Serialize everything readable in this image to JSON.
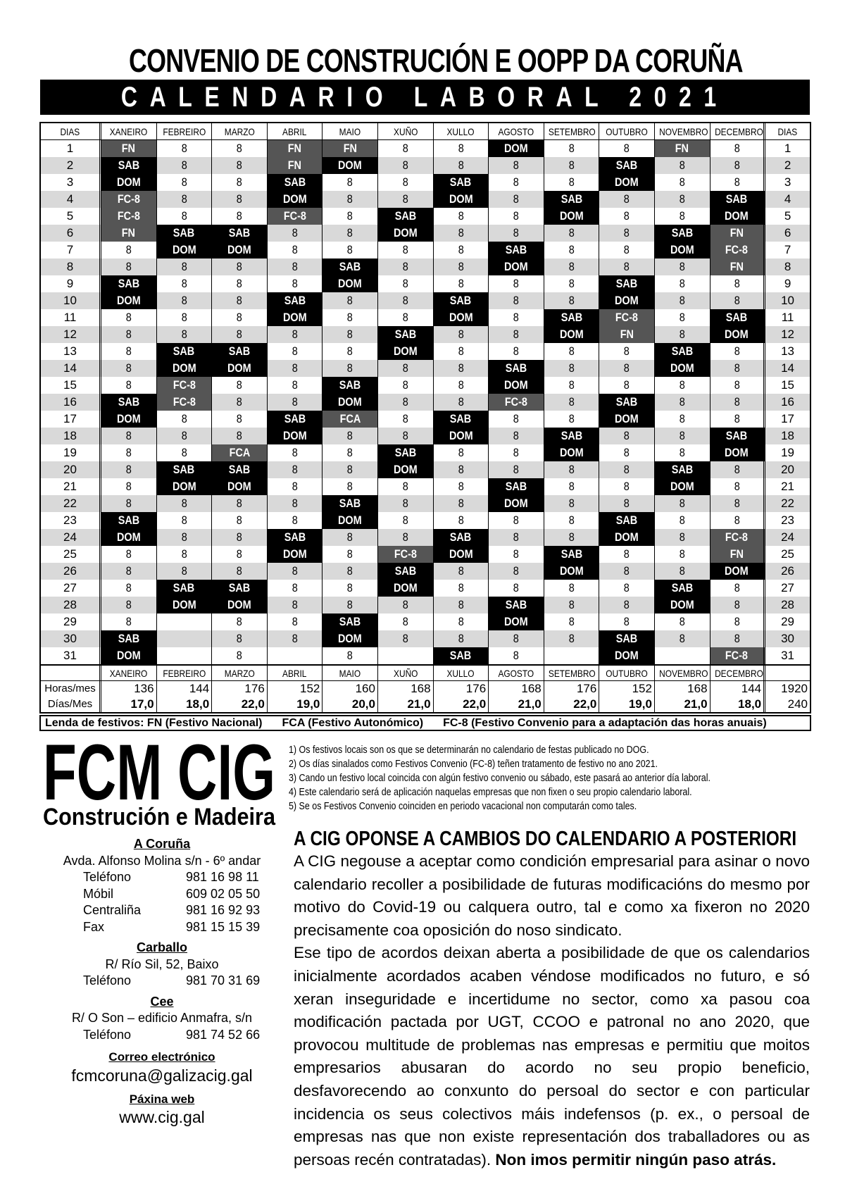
{
  "title": "CONVENIO DE CONSTRUCIÓN E OOPP DA CORUÑA",
  "subtitle": "CALENDARIO LABORAL 2021",
  "colors": {
    "weekend": "#000000",
    "holiday": "#555555",
    "stripe": "#d9d9d9"
  },
  "table": {
    "days_label": "DIAS",
    "months": [
      "XANEIRO",
      "FEBREIRO",
      "MARZO",
      "ABRIL",
      "MAIO",
      "XUÑO",
      "XULLO",
      "AGOSTO",
      "SETEMBRO",
      "OUTUBRO",
      "NOVEMBRO",
      "DECEMBRO"
    ],
    "grid": [
      [
        "FN",
        "SAB",
        "DOM",
        "FC-8",
        "FC-8",
        "FN",
        "8",
        "8",
        "SAB",
        "DOM",
        "8",
        "8",
        "8",
        "8",
        "8",
        "SAB",
        "DOM",
        "8",
        "8",
        "8",
        "8",
        "8",
        "SAB",
        "DOM",
        "8",
        "8",
        "8",
        "8",
        "8",
        "SAB",
        "DOM"
      ],
      [
        "8",
        "8",
        "8",
        "8",
        "8",
        "SAB",
        "DOM",
        "8",
        "8",
        "8",
        "8",
        "8",
        "SAB",
        "DOM",
        "FC-8",
        "FC-8",
        "8",
        "8",
        "8",
        "SAB",
        "DOM",
        "8",
        "8",
        "8",
        "8",
        "8",
        "SAB",
        "DOM",
        "",
        "",
        ""
      ],
      [
        "8",
        "8",
        "8",
        "8",
        "8",
        "SAB",
        "DOM",
        "8",
        "8",
        "8",
        "8",
        "8",
        "SAB",
        "DOM",
        "8",
        "8",
        "8",
        "8",
        "FCA",
        "SAB",
        "DOM",
        "8",
        "8",
        "8",
        "8",
        "8",
        "SAB",
        "DOM",
        "8",
        "8",
        "8"
      ],
      [
        "FN",
        "FN",
        "SAB",
        "DOM",
        "FC-8",
        "8",
        "8",
        "8",
        "8",
        "SAB",
        "DOM",
        "8",
        "8",
        "8",
        "8",
        "8",
        "SAB",
        "DOM",
        "8",
        "8",
        "8",
        "8",
        "8",
        "SAB",
        "DOM",
        "8",
        "8",
        "8",
        "8",
        "8",
        ""
      ],
      [
        "FN",
        "DOM",
        "8",
        "8",
        "8",
        "8",
        "8",
        "SAB",
        "DOM",
        "8",
        "8",
        "8",
        "8",
        "8",
        "SAB",
        "DOM",
        "FCA",
        "8",
        "8",
        "8",
        "8",
        "SAB",
        "DOM",
        "8",
        "8",
        "8",
        "8",
        "8",
        "SAB",
        "DOM",
        "8"
      ],
      [
        "8",
        "8",
        "8",
        "8",
        "SAB",
        "DOM",
        "8",
        "8",
        "8",
        "8",
        "8",
        "SAB",
        "DOM",
        "8",
        "8",
        "8",
        "8",
        "8",
        "SAB",
        "DOM",
        "8",
        "8",
        "8",
        "8",
        "FC-8",
        "SAB",
        "DOM",
        "8",
        "8",
        "8",
        ""
      ],
      [
        "8",
        "8",
        "SAB",
        "DOM",
        "8",
        "8",
        "8",
        "8",
        "8",
        "SAB",
        "DOM",
        "8",
        "8",
        "8",
        "8",
        "8",
        "SAB",
        "DOM",
        "8",
        "8",
        "8",
        "8",
        "8",
        "SAB",
        "DOM",
        "8",
        "8",
        "8",
        "8",
        "8",
        "SAB"
      ],
      [
        "DOM",
        "8",
        "8",
        "8",
        "8",
        "8",
        "SAB",
        "DOM",
        "8",
        "8",
        "8",
        "8",
        "8",
        "SAB",
        "DOM",
        "FC-8",
        "8",
        "8",
        "8",
        "8",
        "SAB",
        "DOM",
        "8",
        "8",
        "8",
        "8",
        "8",
        "SAB",
        "DOM",
        "8",
        "8"
      ],
      [
        "8",
        "8",
        "8",
        "SAB",
        "DOM",
        "8",
        "8",
        "8",
        "8",
        "8",
        "SAB",
        "DOM",
        "8",
        "8",
        "8",
        "8",
        "8",
        "SAB",
        "DOM",
        "8",
        "8",
        "8",
        "8",
        "8",
        "SAB",
        "DOM",
        "8",
        "8",
        "8",
        "8",
        ""
      ],
      [
        "8",
        "SAB",
        "DOM",
        "8",
        "8",
        "8",
        "8",
        "8",
        "SAB",
        "DOM",
        "FC-8",
        "FN",
        "8",
        "8",
        "8",
        "SAB",
        "DOM",
        "8",
        "8",
        "8",
        "8",
        "8",
        "SAB",
        "DOM",
        "8",
        "8",
        "8",
        "8",
        "8",
        "SAB",
        "DOM"
      ],
      [
        "FN",
        "8",
        "8",
        "8",
        "8",
        "SAB",
        "DOM",
        "8",
        "8",
        "8",
        "8",
        "8",
        "SAB",
        "DOM",
        "8",
        "8",
        "8",
        "8",
        "8",
        "SAB",
        "DOM",
        "8",
        "8",
        "8",
        "8",
        "8",
        "SAB",
        "DOM",
        "8",
        "8",
        ""
      ],
      [
        "8",
        "8",
        "8",
        "SAB",
        "DOM",
        "FN",
        "FC-8",
        "FN",
        "8",
        "8",
        "SAB",
        "DOM",
        "8",
        "8",
        "8",
        "8",
        "8",
        "SAB",
        "DOM",
        "8",
        "8",
        "8",
        "8",
        "FC-8",
        "FN",
        "DOM",
        "8",
        "8",
        "8",
        "8",
        "FC-8"
      ]
    ],
    "totals_rows": [
      {
        "label": "Horas/mes",
        "values": [
          "136",
          "144",
          "176",
          "152",
          "160",
          "168",
          "176",
          "168",
          "176",
          "152",
          "168",
          "144"
        ],
        "total": "1920"
      },
      {
        "label": "Días/Mes",
        "values": [
          "17,0",
          "18,0",
          "22,0",
          "19,0",
          "20,0",
          "21,0",
          "22,0",
          "21,0",
          "22,0",
          "19,0",
          "21,0",
          "18,0"
        ],
        "total": "240"
      }
    ],
    "legend": [
      "Lenda de festivos: FN (Festivo Nacional)",
      "FCA (Festivo Autonómico)",
      "FC-8  (Festivo Convenio para a adaptación das horas anuais)"
    ]
  },
  "logo": {
    "top": "FCM CIG",
    "bottom": "Construción e Madeira"
  },
  "notes": [
    "1) Os festivos locais son os que se determinarán no calendario de festas publicado no DOG.",
    "2) Os días sinalados como Festivos Convenio (FC-8) teñen tratamento de festivo no ano 2021.",
    "3) Cando un festivo local coincida con algún festivo convenio ou sábado, este pasará ao anterior día laboral.",
    "4) Este calendario será de aplicación naquelas empresas que non fixen o seu propio calendario laboral.",
    "5) Se os Festivos Convenio coinciden en periodo vacacional non computarán como tales."
  ],
  "article": {
    "heading": "A CIG OPONSE A CAMBIOS DO CALENDARIO A POSTERIORI",
    "p1": "A CIG negouse a aceptar como condición empresarial para asinar o novo calendario recoller a posibilidade de futuras modificacións do mesmo por motivo do Covid-19 ou calquera outro, tal e como xa fixeron no 2020 precisamente coa oposición do noso sindicato.",
    "p2": "Ese tipo de acordos deixan aberta a posibilidade de que os calendarios inicialmente acordados acaben véndose modificados no futuro, e só xeran inseguridade e incertidume no sector, como xa pasou coa modificación pactada por UGT, CCOO e patronal no ano 2020, que provocou multitude de problemas nas empresas e permitiu que moitos empresarios abusaran do acordo no seu propio beneficio, desfavorecendo ao conxunto do persoal do sector e con particular incidencia os seus colectivos máis indefensos (p. ex., o persoal de empresas nas que non existe representación dos traballadores ou as persoas recén contratadas).",
    "p2_bold": "Non imos permitir ningún paso atrás."
  },
  "contacts": {
    "coruna": {
      "city": "A Coruña",
      "address": "Avda. Alfonso Molina s/n - 6º andar",
      "lines": [
        [
          "Teléfono",
          "981 16 98 11"
        ],
        [
          "Móbil",
          "609 02 05 50"
        ],
        [
          "Centraliña",
          "981 16 92 93"
        ],
        [
          "Fax",
          "981 15 15 39"
        ]
      ]
    },
    "carballo": {
      "city": "Carballo",
      "address": "R/ Río Sil, 52, Baixo",
      "lines": [
        [
          "Teléfono",
          "981 70 31 69"
        ]
      ]
    },
    "cee": {
      "city": "Cee",
      "address": "R/ O Son – edificio Anmafra, s/n",
      "lines": [
        [
          "Teléfono",
          "981 74 52 66"
        ]
      ]
    },
    "email_label": "Correo electrónico",
    "email": "fcmcoruna@galizacig.gal",
    "web_label": "Páxina web",
    "web": "www.cig.gal"
  }
}
